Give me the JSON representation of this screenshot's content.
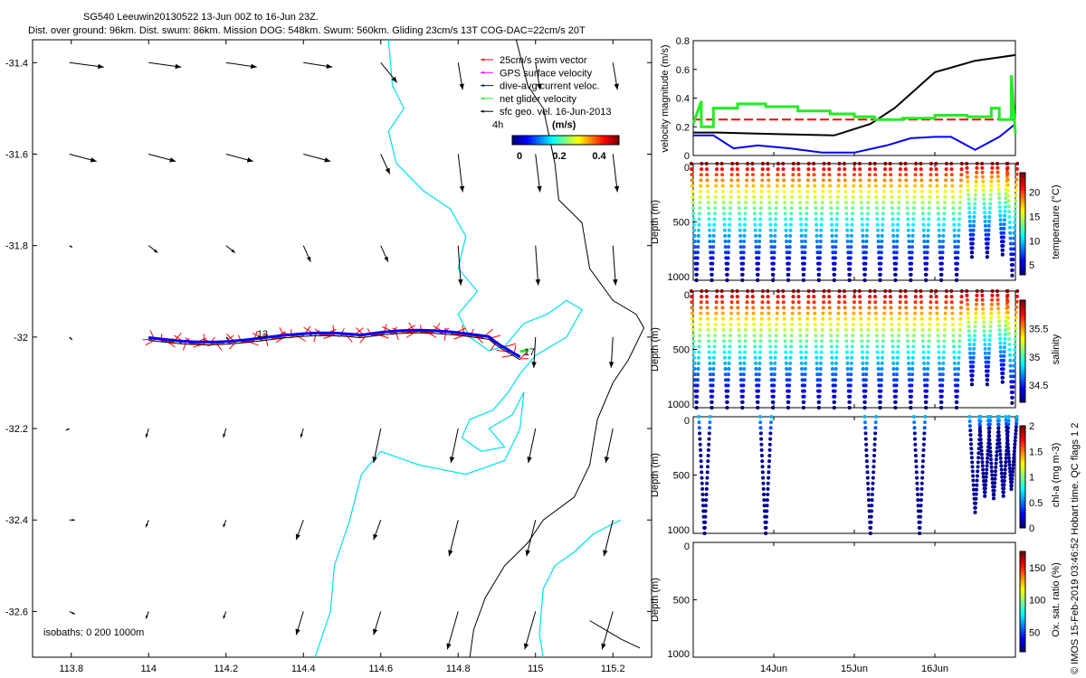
{
  "header": {
    "line1": "SG540 Leeuwin20130522 13-Jun 00Z to 16-Jun 23Z.",
    "line2": "Dist. over ground: 96km. Dist. swum: 86km. Mission DOG: 548km. Swum: 560km. Gliding 23cm/s 13T COG-DAC=22cm/s 20T"
  },
  "credit": "© IMOS 15-Feb-2019 03:46:52 Hobart time. QC flags 1  2",
  "colors": {
    "cyan": "#00e0f0",
    "red": "#ff0000",
    "blue": "#0000ff",
    "green": "#22ee22",
    "magenta": "#ff00ff",
    "black": "#000000"
  },
  "chart_data": [
    {
      "type": "scatter",
      "name": "map",
      "xlim": [
        113.7,
        115.3
      ],
      "ylim": [
        -32.7,
        -31.35
      ],
      "x_ticks": [
        "113.8",
        "114",
        "114.2",
        "114.4",
        "114.6",
        "114.8",
        "115",
        "115.2"
      ],
      "y_ticks": [
        "-31.4",
        "-31.6",
        "-31.8",
        "-32",
        "-32.2",
        "-32.4",
        "-32.6"
      ],
      "legend": {
        "items": [
          {
            "label": "25cm/s swim vector",
            "color": "#ff0000"
          },
          {
            "label": "GPS surface velocity",
            "color": "#ff00ff"
          },
          {
            "label": "dive-avg current veloc.",
            "color": "#0000ff"
          },
          {
            "label": "net glider velocity",
            "color": "#22ee22"
          },
          {
            "label": "sfc geo. vel. 16-Jun-2013",
            "color": "#000000"
          }
        ],
        "extra": "4h",
        "colorbar_title": "(m/s)",
        "colorbar_ticks": [
          "0",
          "0.2",
          "0.4"
        ]
      },
      "track_labels": [
        {
          "text": "13",
          "x": 114.28,
          "y": -32.0
        },
        {
          "text": "17",
          "x": 114.97,
          "y": -32.04
        }
      ],
      "isobaths_label": "isobaths: 0   200  1000m"
    },
    {
      "type": "line",
      "name": "velocity",
      "ylabel": "velocity magnitude (m/s)",
      "xlim": [
        13.0,
        17.0
      ],
      "ylim": [
        0,
        0.8
      ],
      "y_ticks": [
        "0",
        "0.2",
        "0.4",
        "0.6",
        "0.8"
      ],
      "series": [
        {
          "color": "#000000",
          "x": [
            13.0,
            13.3,
            14.0,
            14.75,
            15.2,
            15.5,
            16.0,
            16.5,
            17.0
          ],
          "y": [
            0.16,
            0.16,
            0.15,
            0.14,
            0.22,
            0.33,
            0.58,
            0.66,
            0.7
          ]
        },
        {
          "color": "#0000ff",
          "x": [
            13.0,
            13.25,
            13.5,
            13.8,
            14.2,
            14.6,
            15.0,
            15.4,
            15.7,
            16.0,
            16.2,
            16.5,
            16.8,
            17.0
          ],
          "y": [
            0.14,
            0.14,
            0.05,
            0.07,
            0.05,
            0.02,
            0.02,
            0.07,
            0.12,
            0.13,
            0.13,
            0.04,
            0.13,
            0.22
          ]
        },
        {
          "color": "#ff0000",
          "dashed": true,
          "x": [
            13.0,
            17.0
          ],
          "y": [
            0.25,
            0.25
          ]
        },
        {
          "color": "#22ee22",
          "x": [
            13.0,
            13.1,
            13.1,
            13.25,
            13.25,
            13.55,
            13.55,
            13.9,
            13.9,
            14.3,
            14.3,
            14.7,
            14.7,
            15.0,
            15.0,
            15.25,
            15.25,
            15.6,
            15.6,
            16.0,
            16.0,
            16.4,
            16.4,
            16.7,
            16.7,
            16.8,
            16.8,
            16.95,
            16.95,
            17.0
          ],
          "y": [
            0.22,
            0.38,
            0.2,
            0.2,
            0.33,
            0.33,
            0.36,
            0.36,
            0.34,
            0.34,
            0.31,
            0.31,
            0.29,
            0.29,
            0.27,
            0.27,
            0.25,
            0.25,
            0.26,
            0.26,
            0.28,
            0.28,
            0.27,
            0.27,
            0.33,
            0.33,
            0.25,
            0.25,
            0.56,
            0.15
          ]
        }
      ]
    },
    {
      "type": "scatter",
      "name": "temperature",
      "ylabel": "Depth (m)",
      "clabel": "temperature (°C)",
      "xlim": [
        13.0,
        17.0
      ],
      "ylim": [
        0,
        1000
      ],
      "y_ticks": [
        "0",
        "500",
        "1000"
      ],
      "c_ticks": [
        "5",
        "10",
        "15",
        "20"
      ],
      "clim": [
        3,
        24
      ],
      "dive_times": [
        13.04,
        13.23,
        13.42,
        13.61,
        13.8,
        13.99,
        14.18,
        14.37,
        14.56,
        14.75,
        14.94,
        15.13,
        15.32,
        15.51,
        15.7,
        15.89,
        16.08,
        16.27,
        16.46,
        16.65,
        16.84,
        16.96
      ],
      "dive_depths": [
        1000,
        1000,
        1000,
        1000,
        1000,
        1000,
        1000,
        1000,
        1000,
        1000,
        1000,
        1000,
        1000,
        1000,
        1000,
        1000,
        1000,
        1000,
        800,
        800,
        780,
        960
      ]
    },
    {
      "type": "scatter",
      "name": "salinity",
      "ylabel": "Depth (m)",
      "clabel": "salinity",
      "xlim": [
        13.0,
        17.0
      ],
      "ylim": [
        0,
        1000
      ],
      "y_ticks": [
        "0",
        "500",
        "1000"
      ],
      "c_ticks": [
        "34.5",
        "35",
        "35.5"
      ],
      "clim": [
        34.2,
        36.0
      ],
      "dive_times": [
        13.04,
        13.23,
        13.42,
        13.61,
        13.8,
        13.99,
        14.18,
        14.37,
        14.56,
        14.75,
        14.94,
        15.13,
        15.32,
        15.51,
        15.7,
        15.89,
        16.08,
        16.27,
        16.46,
        16.65,
        16.84,
        16.96
      ],
      "dive_depths": [
        1000,
        1000,
        1000,
        1000,
        1000,
        1000,
        1000,
        1000,
        1000,
        1000,
        1000,
        1000,
        1000,
        1000,
        1000,
        1000,
        1000,
        1000,
        800,
        800,
        780,
        960
      ]
    },
    {
      "type": "scatter",
      "name": "chlorophyll",
      "ylabel": "Depth (m)",
      "clabel": "chl-a (mg m-3)",
      "xlim": [
        13.0,
        17.0
      ],
      "ylim": [
        0,
        1000
      ],
      "y_ticks": [
        "0",
        "500",
        "1000"
      ],
      "c_ticks": [
        "0",
        "0.5",
        "1",
        "1.5",
        "2"
      ],
      "clim": [
        0,
        2
      ],
      "dive_times": [
        13.14,
        13.9,
        15.2,
        15.81,
        16.5,
        16.62,
        16.73,
        16.85,
        16.95
      ],
      "dive_depths": [
        1000,
        1000,
        1000,
        1000,
        820,
        680,
        700,
        680,
        620
      ]
    },
    {
      "type": "scatter",
      "name": "oxygen",
      "ylabel": "Depth (m)",
      "clabel": "Ox. sat. ratio (%)",
      "xlim": [
        13.0,
        17.0
      ],
      "ylim": [
        0,
        1000
      ],
      "y_ticks": [
        "0",
        "500",
        "1000"
      ],
      "c_ticks": [
        "50",
        "100",
        "150"
      ],
      "clim": [
        20,
        175
      ],
      "x_ticks": [
        "14Jun",
        "15Jun",
        "16Jun"
      ]
    }
  ]
}
